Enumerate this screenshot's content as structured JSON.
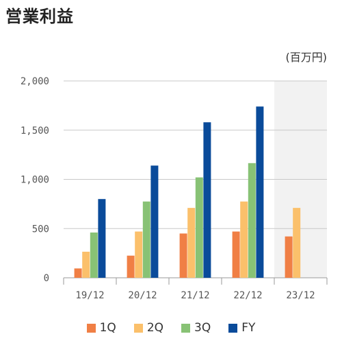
{
  "title": "営業利益",
  "unit_label": "(百万円)",
  "chart_data": {
    "type": "bar",
    "title": "営業利益",
    "ylabel": "(百万円)",
    "xlabel": "",
    "ylim": [
      0,
      2000
    ],
    "yticks": [
      0,
      500,
      1000,
      1500,
      2000
    ],
    "ytick_labels": [
      "0",
      "500",
      "1,000",
      "1,500",
      "2,000"
    ],
    "categories": [
      "19/12",
      "20/12",
      "21/12",
      "22/12",
      "23/12"
    ],
    "highlight_category": "23/12",
    "highlight_color": "#f2f2f2",
    "grid": true,
    "legend_position": "bottom",
    "series": [
      {
        "name": "1Q",
        "color": "#f07f45",
        "values": [
          95,
          225,
          450,
          470,
          420
        ]
      },
      {
        "name": "2Q",
        "color": "#fbc06b",
        "values": [
          265,
          470,
          710,
          775,
          710
        ]
      },
      {
        "name": "3Q",
        "color": "#88c275",
        "values": [
          460,
          775,
          1020,
          1165,
          null
        ]
      },
      {
        "name": "FY",
        "color": "#0a4b9a",
        "values": [
          800,
          1140,
          1580,
          1740,
          null
        ]
      }
    ]
  }
}
